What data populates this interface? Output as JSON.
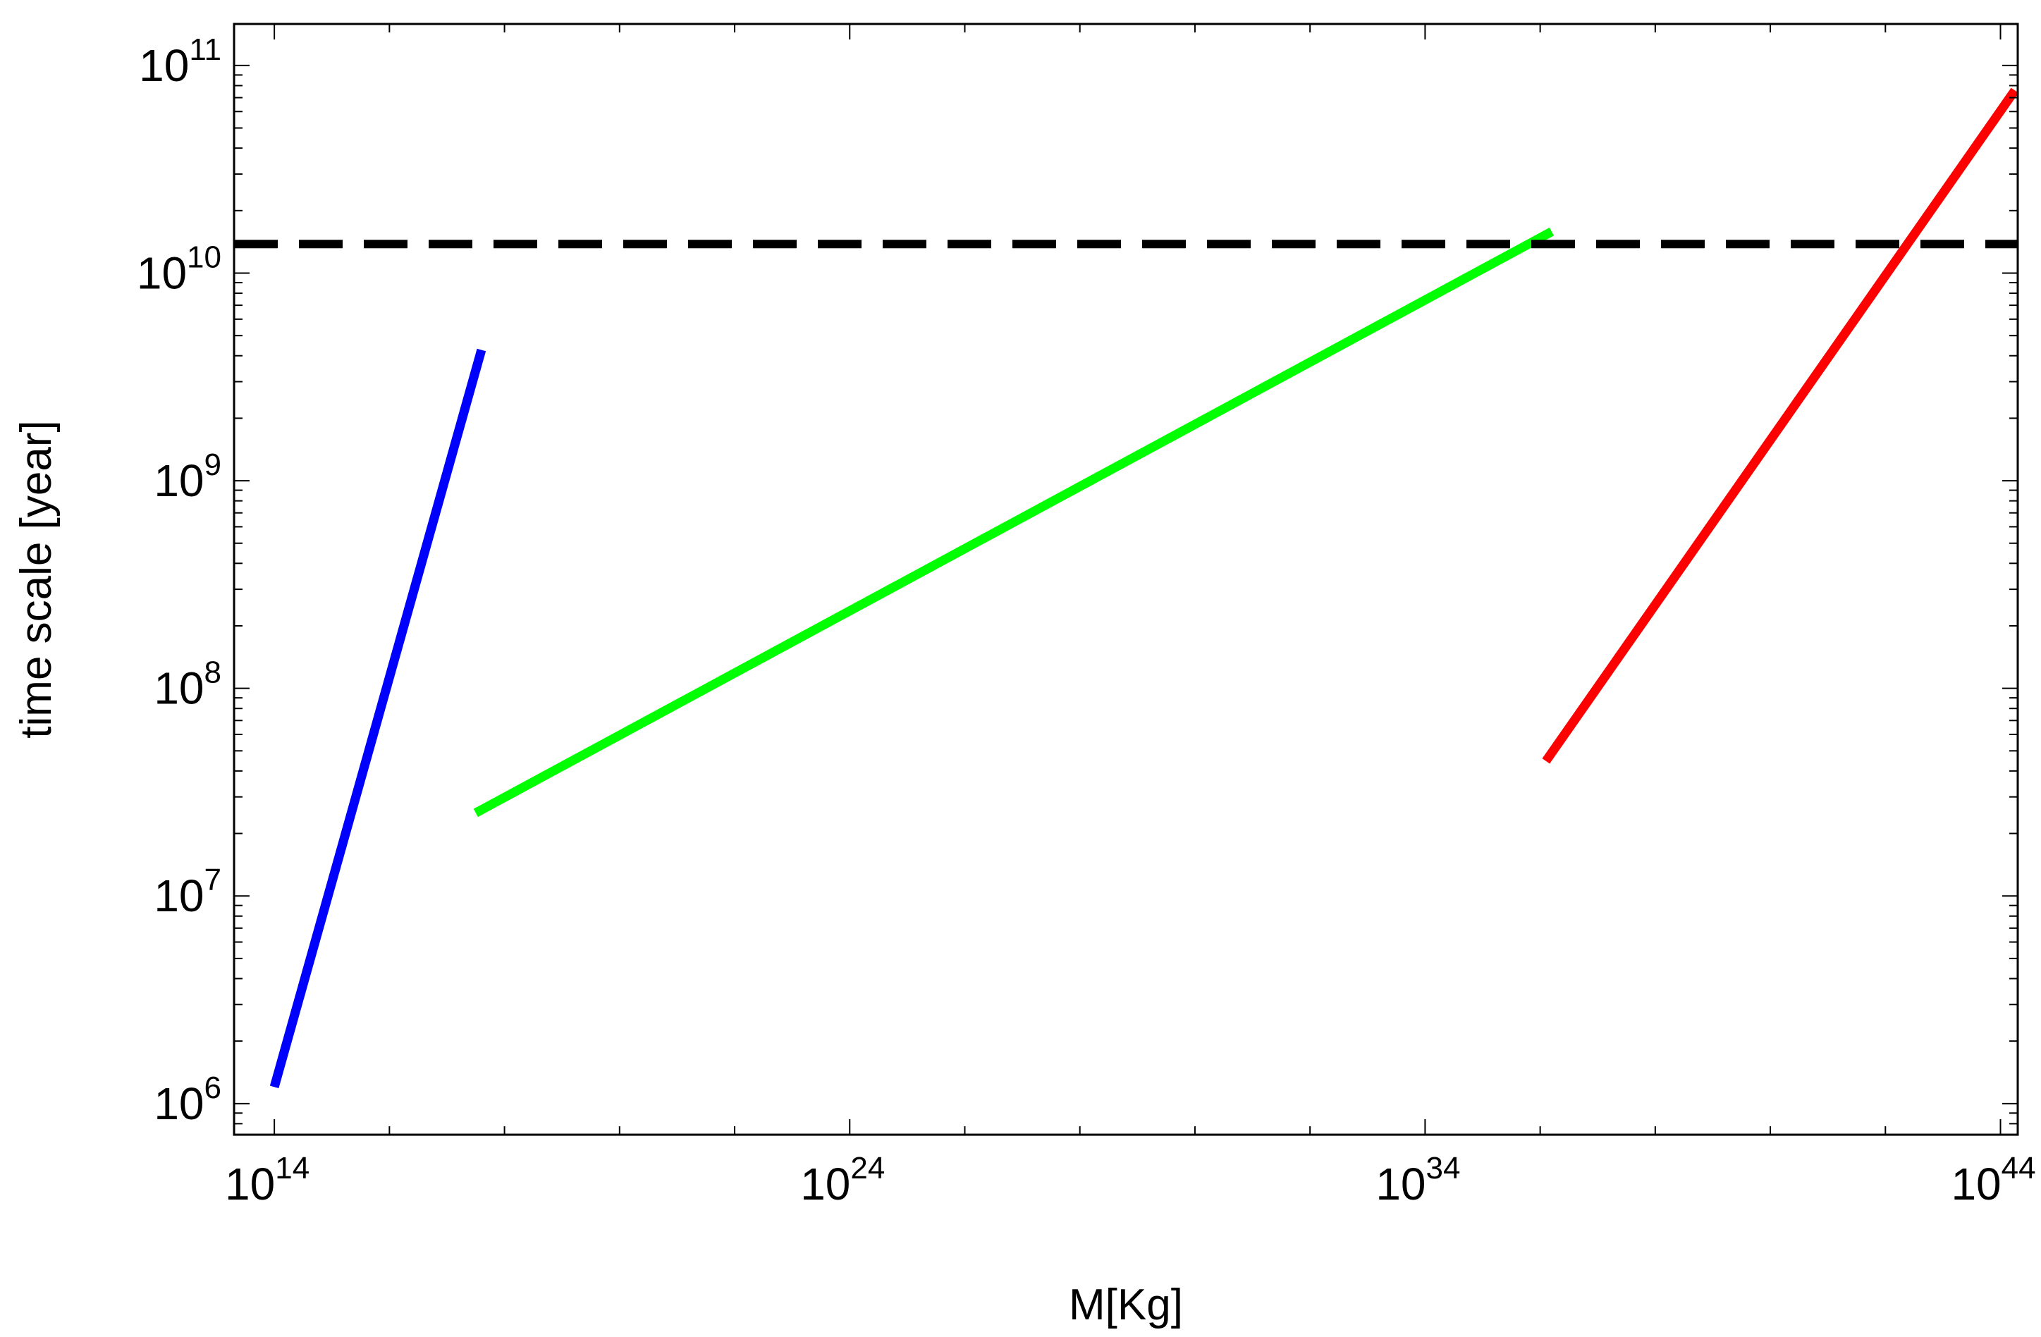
{
  "chart_data": {
    "type": "line",
    "title": "",
    "xlabel": "M[Kg]",
    "ylabel": "time scale [year]",
    "x_scale": "log",
    "y_scale": "log",
    "xlim_log10": [
      13.3,
      44.3
    ],
    "ylim_log10": [
      5.85,
      11.2
    ],
    "x_ticks": [
      {
        "log": 14,
        "base": "10",
        "exp": "14"
      },
      {
        "log": 24,
        "base": "10",
        "exp": "24"
      },
      {
        "log": 34,
        "base": "10",
        "exp": "34"
      },
      {
        "log": 44,
        "base": "10",
        "exp": "44"
      }
    ],
    "y_ticks": [
      {
        "log": 6,
        "base": "10",
        "exp": "6"
      },
      {
        "log": 7,
        "base": "10",
        "exp": "7"
      },
      {
        "log": 8,
        "base": "10",
        "exp": "8"
      },
      {
        "log": 9,
        "base": "10",
        "exp": "9"
      },
      {
        "log": 10,
        "base": "10",
        "exp": "10"
      },
      {
        "log": 11,
        "base": "10",
        "exp": "11"
      }
    ],
    "series": [
      {
        "name": "blue",
        "color": "#0000ff",
        "dashed": false,
        "log10_x": [
          14.0,
          17.6
        ],
        "log10_y": [
          6.08,
          9.63
        ]
      },
      {
        "name": "green",
        "color": "#00ff00",
        "dashed": false,
        "log10_x": [
          17.5,
          36.2
        ],
        "log10_y": [
          7.4,
          10.2
        ]
      },
      {
        "name": "red",
        "color": "#ff0000",
        "dashed": false,
        "log10_x": [
          36.1,
          44.25
        ],
        "log10_y": [
          7.65,
          10.88
        ]
      },
      {
        "name": "black-dashed",
        "color": "#000000",
        "dashed": true,
        "log10_x": [
          13.3,
          44.3
        ],
        "log10_y": [
          10.14,
          10.14
        ]
      }
    ]
  }
}
